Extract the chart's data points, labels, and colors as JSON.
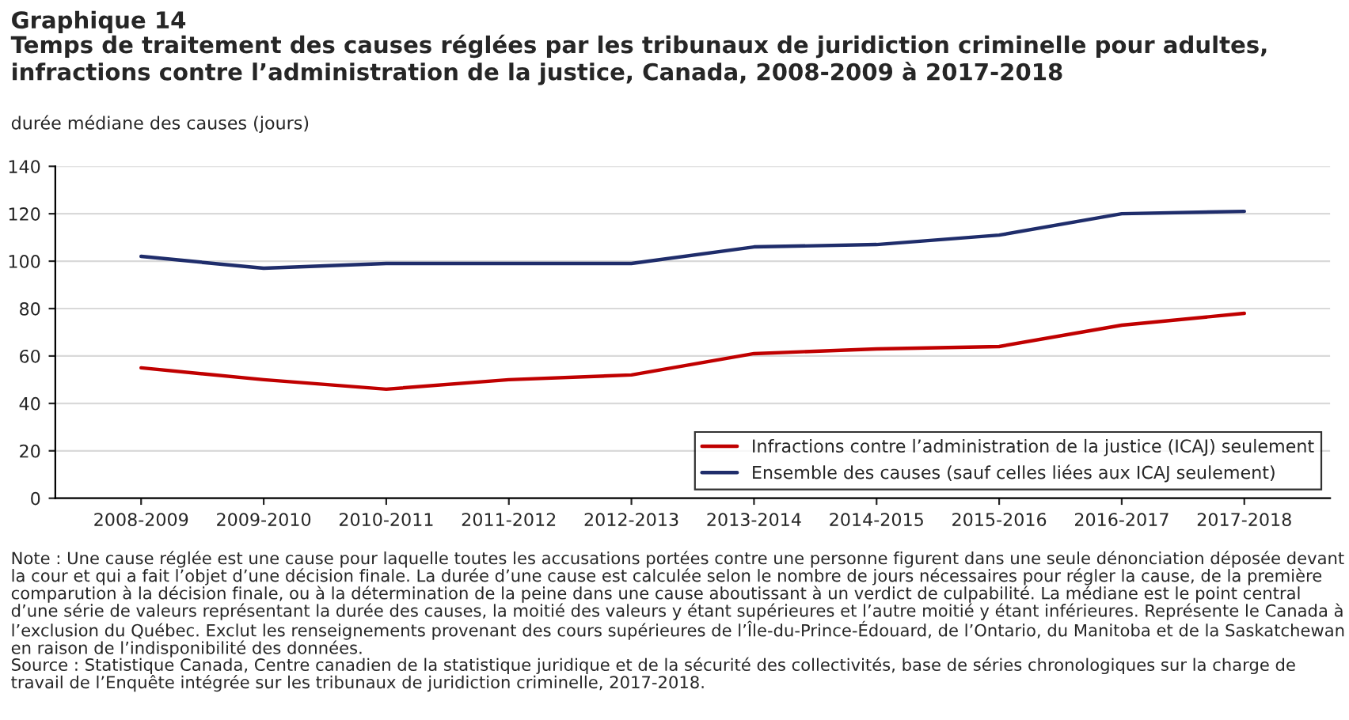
{
  "chart_data": {
    "type": "line",
    "title": "Graphique 14",
    "subtitle": "Temps de traitement des causes réglées par les tribunaux de juridiction criminelle pour adultes, infractions contre l’administration de la justice, Canada, 2008-2009 à 2017-2018",
    "ylabel": "durée médiane des causes (jours)",
    "categories": [
      "2008-2009",
      "2009-2010",
      "2010-2011",
      "2011-2012",
      "2012-2013",
      "2013-2014",
      "2014-2015",
      "2015-2016",
      "2016-2017",
      "2017-2018"
    ],
    "series": [
      {
        "name": "Infractions contre l’administration de la justice (ICAJ) seulement",
        "color": "#c00000",
        "values": [
          55,
          50,
          46,
          50,
          52,
          61,
          63,
          64,
          73,
          78
        ]
      },
      {
        "name": "Ensemble des causes (sauf celles liées aux ICAJ seulement)",
        "color": "#1f2d6b",
        "values": [
          102,
          97,
          99,
          99,
          99,
          106,
          107,
          111,
          120,
          121
        ]
      }
    ],
    "ylim": [
      0,
      140
    ],
    "yticks": [
      0,
      20,
      40,
      60,
      80,
      100,
      120,
      140
    ],
    "grid": "y",
    "legend": "bottom right",
    "marker": "none",
    "line_style": "solid",
    "annotations": [
      "Note : Une cause réglée est une cause pour laquelle toutes les accusations portées contre une personne figurent dans une seule dénonciation déposée devant la cour et qui a fait l’objet d’une décision finale. La durée d’une cause est calculée selon le nombre de jours nécessaires pour régler la cause, de la première comparution à la décision finale, ou à la détermination de la peine dans une cause aboutissant à un verdict de culpabilité. La médiane est le point central d’une série de valeurs représentant la durée des causes, la moitié des valeurs y étant supérieures et l’autre moitié y étant inférieures. Représente le Canada à l’exclusion du Québec. Exclut les renseignements provenant des cours supérieures de l’Île-du-Prince-Édouard, de l’Ontario, du Manitoba et de la Saskatchewan en raison de l’indisponibilité des données.",
      "Source : Statistique Canada, Centre canadien de la statistique juridique et de la sécurité des collectivités, base de séries chronologiques sur la charge de travail de l’Enquête intégrée sur les tribunaux de juridiction criminelle, 2017-2018."
    ]
  }
}
